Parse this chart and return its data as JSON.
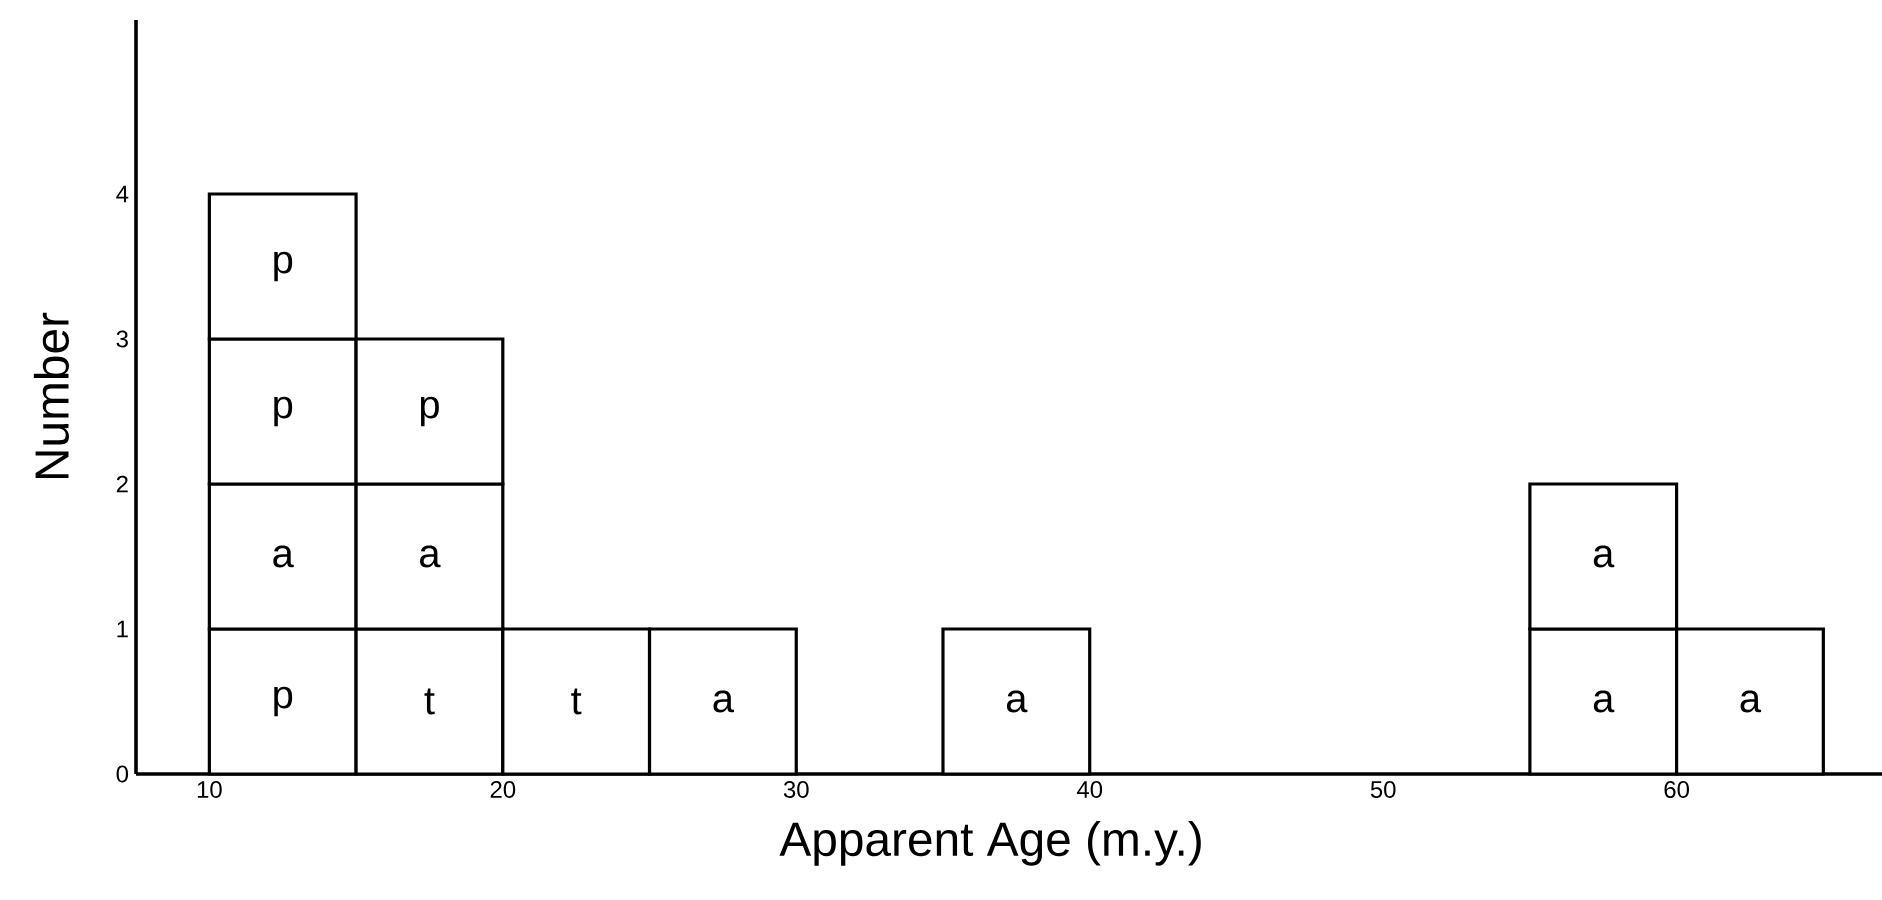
{
  "chart_data": {
    "type": "bar",
    "stacked": true,
    "xlabel": "Apparent  Age  (m.y.)",
    "ylabel": "Number",
    "x": [
      12.5,
      17.5,
      22.5,
      27.5,
      32.5,
      37.5,
      42.5,
      47.5,
      52.5,
      57.5,
      62.5
    ],
    "series": [
      {
        "values": [
          1,
          1,
          1,
          1,
          null,
          1,
          null,
          null,
          null,
          1,
          1
        ],
        "value_labels": [
          "p",
          "t",
          "t",
          "a",
          null,
          "a",
          null,
          null,
          null,
          "a",
          "a"
        ]
      },
      {
        "values": [
          1,
          1,
          null,
          null,
          null,
          null,
          null,
          null,
          null,
          1,
          null
        ],
        "value_labels": [
          "a",
          "a",
          null,
          null,
          null,
          null,
          null,
          null,
          null,
          "a",
          null
        ]
      },
      {
        "values": [
          1,
          1,
          null,
          null,
          null,
          null,
          null,
          null,
          null,
          null,
          null
        ],
        "value_labels": [
          "p",
          "p",
          null,
          null,
          null,
          null,
          null,
          null,
          null,
          null,
          null
        ]
      },
      {
        "values": [
          1,
          null,
          null,
          null,
          null,
          null,
          null,
          null,
          null,
          null,
          null
        ],
        "value_labels": [
          "p",
          null,
          null,
          null,
          null,
          null,
          null,
          null,
          null,
          null,
          null
        ]
      }
    ],
    "xlim": [
      7.5,
      67
    ],
    "ylim": [
      0,
      5.2
    ],
    "xticks": [
      10,
      20,
      30,
      40,
      50,
      60
    ],
    "yticks": [
      0,
      1,
      2,
      3,
      4
    ]
  }
}
